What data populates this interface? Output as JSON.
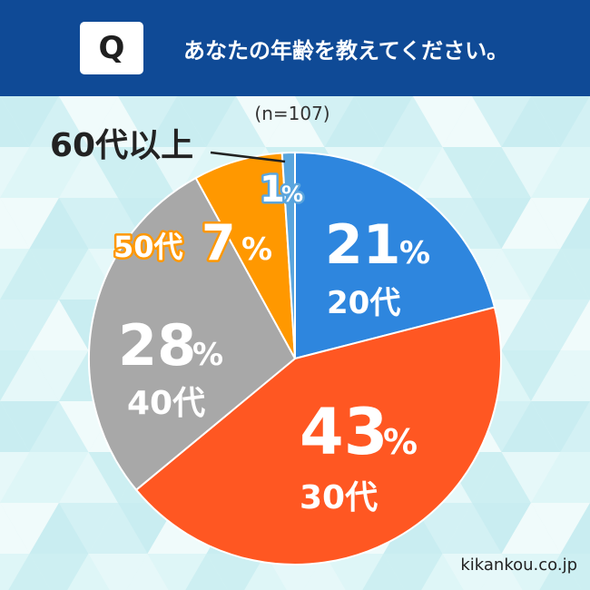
{
  "header": {
    "badge": "Q",
    "question": "あなたの年齢を教えてください。"
  },
  "sample_size": "(n=107)",
  "site": "kikankou.co.jp",
  "colors": {
    "header": "#0f4a96",
    "20s": "#2e86de",
    "30s": "#ff5722",
    "40s": "#a8a8a8",
    "50s": "#ff9800",
    "60s": "#5aa5dd"
  },
  "chart_data": {
    "type": "pie",
    "categories": [
      "20代",
      "30代",
      "40代",
      "50代",
      "60代以上"
    ],
    "values": [
      21,
      43,
      28,
      7,
      1
    ],
    "value_labels": [
      "21",
      "43",
      "28",
      "7",
      "1"
    ],
    "unit": "%",
    "title": "あなたの年齢を教えてください。"
  }
}
